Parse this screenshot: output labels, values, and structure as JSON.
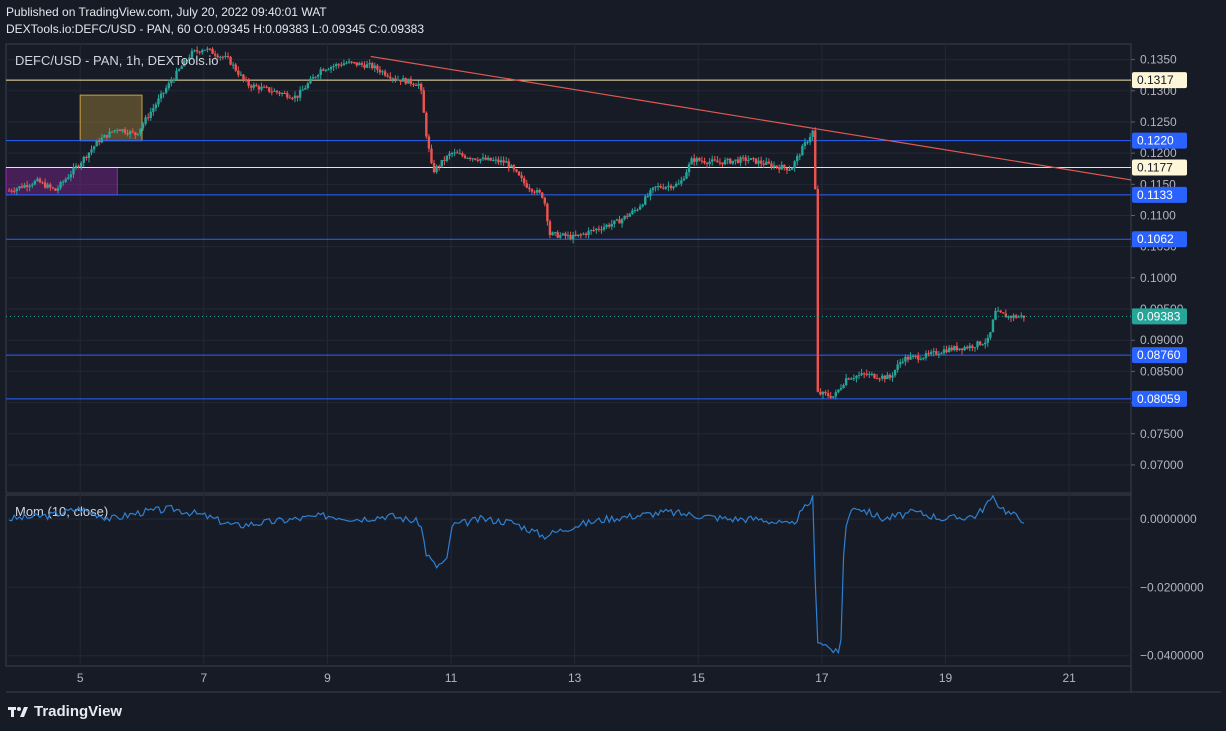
{
  "header": {
    "published": "Published on TradingView.com, July 20, 2022 09:40:01 WAT",
    "ohlc": "DEXTools.io:DEFC/USD - PAN, 60  O:0.09345  H:0.09383  L:0.09345  C:0.09383"
  },
  "brand": {
    "name": "TradingView",
    "icon": "tradingview-logo-icon"
  },
  "colors": {
    "background": "#171b26",
    "up": "#26a69a",
    "down": "#ef5350",
    "hline_blue": "#2962ff",
    "hline_yellow": "#f5e6a8",
    "trendline": "#e05a52",
    "momentum": "#2f80d0",
    "box_orange": "#c8a040",
    "box_purple": "#9c27b0",
    "last_price": "#26a69a"
  },
  "chart_data": [
    {
      "type": "candlestick",
      "title": "DEFC/USD - PAN, 1h, DEXTools.io",
      "x_unit": "day of month (July 2022)",
      "xlim": [
        3.8,
        22.0
      ],
      "ylim": [
        0.0655,
        0.1375
      ],
      "x_ticks": [
        "5",
        "7",
        "9",
        "11",
        "13",
        "15",
        "17",
        "19",
        "21"
      ],
      "y_ticks": [
        "0.07000",
        "0.07500",
        "0.08000",
        "0.08500",
        "0.09000",
        "0.09500",
        "0.1000",
        "0.1050",
        "0.1100",
        "0.1150",
        "0.1200",
        "0.1250",
        "0.1300",
        "0.1350"
      ],
      "price_path": [
        [
          3.85,
          0.114
        ],
        [
          4.3,
          0.1155
        ],
        [
          4.6,
          0.114
        ],
        [
          5.0,
          0.1185
        ],
        [
          5.3,
          0.122
        ],
        [
          5.6,
          0.124
        ],
        [
          5.9,
          0.123
        ],
        [
          6.2,
          0.1275
        ],
        [
          6.5,
          0.132
        ],
        [
          6.8,
          0.136
        ],
        [
          7.0,
          0.1368
        ],
        [
          7.4,
          0.135
        ],
        [
          7.7,
          0.131
        ],
        [
          8.1,
          0.13
        ],
        [
          8.5,
          0.129
        ],
        [
          8.9,
          0.1335
        ],
        [
          9.3,
          0.1345
        ],
        [
          9.7,
          0.134
        ],
        [
          10.1,
          0.132
        ],
        [
          10.5,
          0.131
        ],
        [
          10.6,
          0.123
        ],
        [
          10.7,
          0.117
        ],
        [
          11.0,
          0.12
        ],
        [
          11.5,
          0.119
        ],
        [
          11.9,
          0.1185
        ],
        [
          12.2,
          0.115
        ],
        [
          12.5,
          0.113
        ],
        [
          12.6,
          0.107
        ],
        [
          13.0,
          0.1065
        ],
        [
          13.4,
          0.108
        ],
        [
          13.7,
          0.109
        ],
        [
          14.0,
          0.111
        ],
        [
          14.3,
          0.1145
        ],
        [
          14.7,
          0.115
        ],
        [
          14.9,
          0.119
        ],
        [
          15.3,
          0.1185
        ],
        [
          15.8,
          0.119
        ],
        [
          16.2,
          0.118
        ],
        [
          16.5,
          0.1175
        ],
        [
          16.7,
          0.121
        ],
        [
          16.88,
          0.124
        ],
        [
          16.93,
          0.0815
        ],
        [
          17.2,
          0.081
        ],
        [
          17.4,
          0.084
        ],
        [
          17.7,
          0.0845
        ],
        [
          18.1,
          0.084
        ],
        [
          18.3,
          0.087
        ],
        [
          18.7,
          0.0875
        ],
        [
          19.0,
          0.0885
        ],
        [
          19.4,
          0.089
        ],
        [
          19.7,
          0.09
        ],
        [
          19.8,
          0.0945
        ],
        [
          20.0,
          0.0938
        ],
        [
          20.3,
          0.0938
        ]
      ],
      "price_lines": [
        {
          "label": "0.1317",
          "value": 0.1317,
          "style": "yellow"
        },
        {
          "label": "0.1220",
          "value": 0.122,
          "style": "blue"
        },
        {
          "label": "0.1177",
          "value": 0.1177,
          "style": "yellow"
        },
        {
          "label": "0.1133",
          "value": 0.1133,
          "style": "blue"
        },
        {
          "label": "0.1062",
          "value": 0.1062,
          "style": "blue"
        },
        {
          "label": "0.08760",
          "value": 0.0876,
          "style": "blue"
        },
        {
          "label": "0.08059",
          "value": 0.08059,
          "style": "blue"
        }
      ],
      "last_price": {
        "label": "0.09383",
        "value": 0.09383
      },
      "trendline": {
        "x": [
          9.7,
          22.0
        ],
        "y": [
          0.1355,
          0.1157
        ]
      },
      "zones": [
        {
          "x": [
            5.0,
            6.0
          ],
          "y": [
            0.122,
            0.1293
          ],
          "color": "orange"
        },
        {
          "x": [
            3.8,
            5.6
          ],
          "y": [
            0.1133,
            0.1177
          ],
          "color": "purple"
        }
      ]
    },
    {
      "type": "line",
      "title": "Mom (10, close)",
      "xlim": [
        3.8,
        22.0
      ],
      "ylim": [
        -0.043,
        0.007
      ],
      "y_ticks": [
        "0.0000000",
        "−0.0200000",
        "−0.0400000"
      ],
      "series": [
        {
          "name": "",
          "x": [
            3.85,
            4.5,
            5.0,
            5.5,
            6.0,
            6.5,
            7.0,
            7.5,
            8.0,
            8.5,
            9.0,
            9.5,
            10.0,
            10.5,
            10.6,
            10.75,
            10.95,
            11.0,
            11.5,
            12.0,
            12.5,
            13.0,
            13.5,
            14.0,
            14.5,
            15.0,
            15.5,
            16.0,
            16.5,
            16.85,
            16.92,
            17.3,
            17.36,
            17.5,
            18.0,
            18.5,
            19.0,
            19.5,
            19.75,
            20.0,
            20.3
          ],
          "values": [
            0.0,
            0.001,
            0.003,
            0.0,
            0.002,
            0.003,
            0.001,
            -0.002,
            -0.001,
            0.0,
            0.001,
            0.0,
            0.001,
            -0.001,
            -0.01,
            -0.014,
            -0.012,
            -0.002,
            0.0,
            -0.001,
            -0.005,
            -0.002,
            0.0,
            0.001,
            0.002,
            0.001,
            0.0,
            0.0,
            -0.002,
            0.006,
            -0.035,
            -0.04,
            -0.004,
            0.004,
            0.0,
            0.002,
            0.0,
            0.001,
            0.006,
            0.002,
            -0.0005
          ]
        }
      ]
    }
  ]
}
